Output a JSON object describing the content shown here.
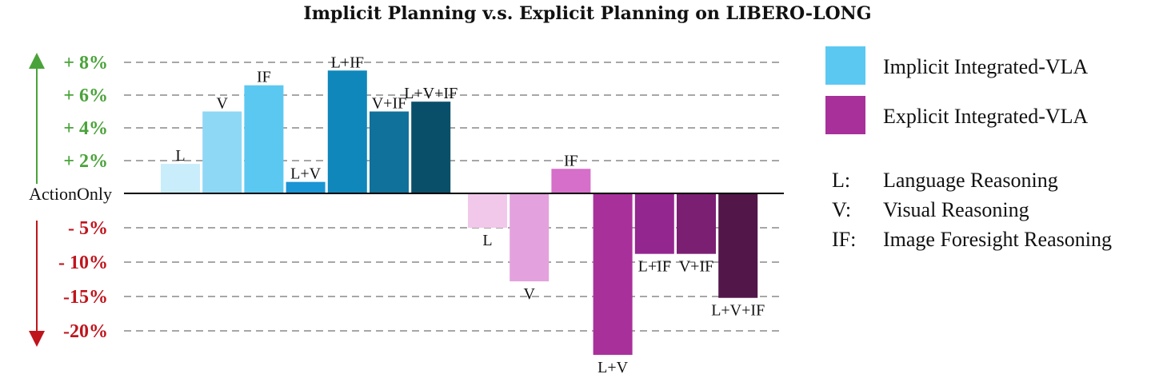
{
  "chart_data": {
    "type": "bar",
    "title": "Implicit Planning v.s. Explicit Planning on LIBERO-LONG",
    "baseline_label": "ActionOnly",
    "y_ticks_positive": [
      {
        "value": 2,
        "label": "+ 2%"
      },
      {
        "value": 4,
        "label": "+ 4%"
      },
      {
        "value": 6,
        "label": "+ 6%"
      },
      {
        "value": 8,
        "label": "+ 8%"
      }
    ],
    "y_ticks_negative": [
      {
        "value": -5,
        "label": "- 5%"
      },
      {
        "value": -10,
        "label": "- 10%"
      },
      {
        "value": -15,
        "label": "-15%"
      },
      {
        "value": -20,
        "label": "-20%"
      }
    ],
    "positive_color": "#4aa33a",
    "negative_color": "#c0141c",
    "grid": true,
    "series": [
      {
        "name": "Implicit Integrated-VLA",
        "legend_color": "#5bc8f2",
        "categories": [
          "L",
          "V",
          "IF",
          "L+V",
          "L+IF",
          "V+IF",
          "L+V+IF"
        ],
        "values": [
          1.8,
          5.0,
          6.6,
          0.7,
          7.5,
          5.0,
          5.6
        ],
        "colors": [
          "#c9edfb",
          "#8fd8f5",
          "#5bc8f2",
          "#1b95d4",
          "#0f87bb",
          "#10719a",
          "#0a4f6a"
        ]
      },
      {
        "name": "Explicit Integrated-VLA",
        "legend_color": "#a8309b",
        "categories": [
          "L",
          "V",
          "IF",
          "L+V",
          "L+IF",
          "V+IF",
          "L+V+IF"
        ],
        "values": [
          -5.0,
          -12.8,
          1.5,
          -23.5,
          -8.8,
          -8.8,
          -15.2
        ],
        "colors": [
          "#f1c8ea",
          "#e3a2dd",
          "#d66fc9",
          "#a8309b",
          "#94268f",
          "#7b1f72",
          "#521648"
        ]
      }
    ],
    "notes": [
      {
        "abbr": "L:",
        "text": "Language Reasoning"
      },
      {
        "abbr": "V:",
        "text": "Visual Reasoning"
      },
      {
        "abbr": "IF:",
        "text": "Image Foresight Reasoning"
      }
    ]
  }
}
